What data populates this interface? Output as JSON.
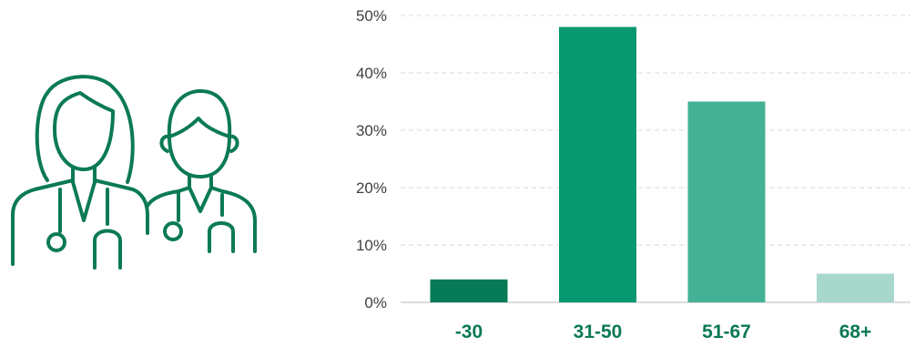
{
  "illustration": {
    "icon": "doctors-icon",
    "stroke_color": "#0b7a55"
  },
  "chart_data": {
    "type": "bar",
    "categories": [
      "-30",
      "31-50",
      "51-67",
      "68+"
    ],
    "values": [
      4,
      48,
      35,
      5
    ],
    "bar_colors": [
      "#067a57",
      "#06986e",
      "#45b194",
      "#a8d8cc"
    ],
    "label_color": "#0b7a55",
    "title": "",
    "xlabel": "",
    "ylabel": "",
    "ylim": [
      0,
      50
    ],
    "y_ticks": [
      0,
      10,
      20,
      30,
      40,
      50
    ],
    "y_tick_labels": [
      "0%",
      "10%",
      "20%",
      "30%",
      "40%",
      "50%"
    ],
    "grid": true,
    "legend": "none"
  }
}
